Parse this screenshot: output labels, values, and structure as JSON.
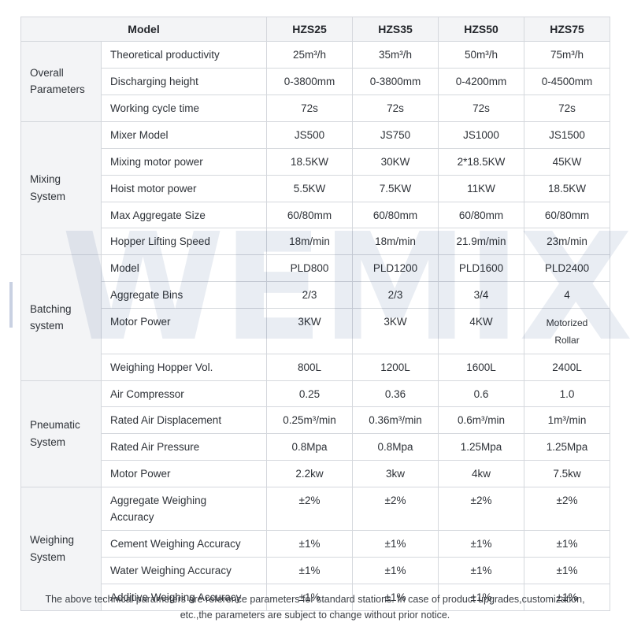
{
  "watermark": {
    "text": "WEMIX"
  },
  "table": {
    "header": {
      "model_label": "Model",
      "columns": [
        "HZS25",
        "HZS35",
        "HZS50",
        "HZS75"
      ]
    },
    "sections": [
      {
        "label": "Overall Parameters",
        "rows": [
          {
            "param": "Theoretical productivity",
            "values": [
              "25m³/h",
              "35m³/h",
              "50m³/h",
              "75m³/h"
            ]
          },
          {
            "param": "Discharging height",
            "values": [
              "0-3800mm",
              "0-3800mm",
              "0-4200mm",
              "0-4500mm"
            ]
          },
          {
            "param": "Working cycle time",
            "values": [
              "72s",
              "72s",
              "72s",
              "72s"
            ]
          }
        ]
      },
      {
        "label": "Mixing System",
        "rows": [
          {
            "param": "Mixer Model",
            "values": [
              "JS500",
              "JS750",
              "JS1000",
              "JS1500"
            ]
          },
          {
            "param": "Mixing motor power",
            "values": [
              "18.5KW",
              "30KW",
              "2*18.5KW",
              "45KW"
            ]
          },
          {
            "param": "Hoist motor power",
            "values": [
              "5.5KW",
              "7.5KW",
              "11KW",
              "18.5KW"
            ]
          },
          {
            "param": "Max Aggregate Size",
            "values": [
              "60/80mm",
              "60/80mm",
              "60/80mm",
              "60/80mm"
            ]
          },
          {
            "param": "Hopper Lifting Speed",
            "values": [
              "18m/min",
              "18m/min",
              "21.9m/min",
              "23m/min"
            ]
          }
        ]
      },
      {
        "label": "Batching system",
        "rows": [
          {
            "param": "Model",
            "values": [
              "PLD800",
              "PLD1200",
              "PLD1600",
              "PLD2400"
            ]
          },
          {
            "param": "Aggregate Bins",
            "values": [
              "2/3",
              "2/3",
              "3/4",
              "4"
            ]
          },
          {
            "param": "Motor Power",
            "values": [
              "3KW",
              "3KW",
              "4KW",
              "Motorized Rollar"
            ]
          },
          {
            "param": "Weighing Hopper Vol.",
            "values": [
              "800L",
              "1200L",
              "1600L",
              "2400L"
            ]
          }
        ]
      },
      {
        "label": "Pneumatic System",
        "rows": [
          {
            "param": "Air Compressor",
            "values": [
              "0.25",
              "0.36",
              "0.6",
              "1.0"
            ]
          },
          {
            "param": "Rated Air Displacement",
            "values": [
              "0.25m³/min",
              "0.36m³/min",
              "0.6m³/min",
              "1m³/min"
            ]
          },
          {
            "param": "Rated Air Pressure",
            "values": [
              "0.8Mpa",
              "0.8Mpa",
              "1.25Mpa",
              "1.25Mpa"
            ]
          },
          {
            "param": "Motor Power",
            "values": [
              "2.2kw",
              "3kw",
              "4kw",
              "7.5kw"
            ]
          }
        ]
      },
      {
        "label": "Weighing System",
        "rows": [
          {
            "param": "Aggregate Weighing Accuracy",
            "values": [
              "±2%",
              "±2%",
              "±2%",
              "±2%"
            ]
          },
          {
            "param": "Cement Weighing Accuracy",
            "values": [
              "±1%",
              "±1%",
              "±1%",
              "±1%"
            ]
          },
          {
            "param": "Water Weighing Accuracy",
            "values": [
              "±1%",
              "±1%",
              "±1%",
              "±1%"
            ]
          },
          {
            "param": "Additive Weighing Accuracy",
            "values": [
              "±1%",
              "±1%",
              "±1%",
              "±1%"
            ]
          }
        ]
      }
    ]
  },
  "footer": {
    "line1": "The above technical parameters are reference parameters for standard stations. In case of product upgrades,customization,",
    "line2": "etc.,the parameters are subject to change without prior notice."
  }
}
